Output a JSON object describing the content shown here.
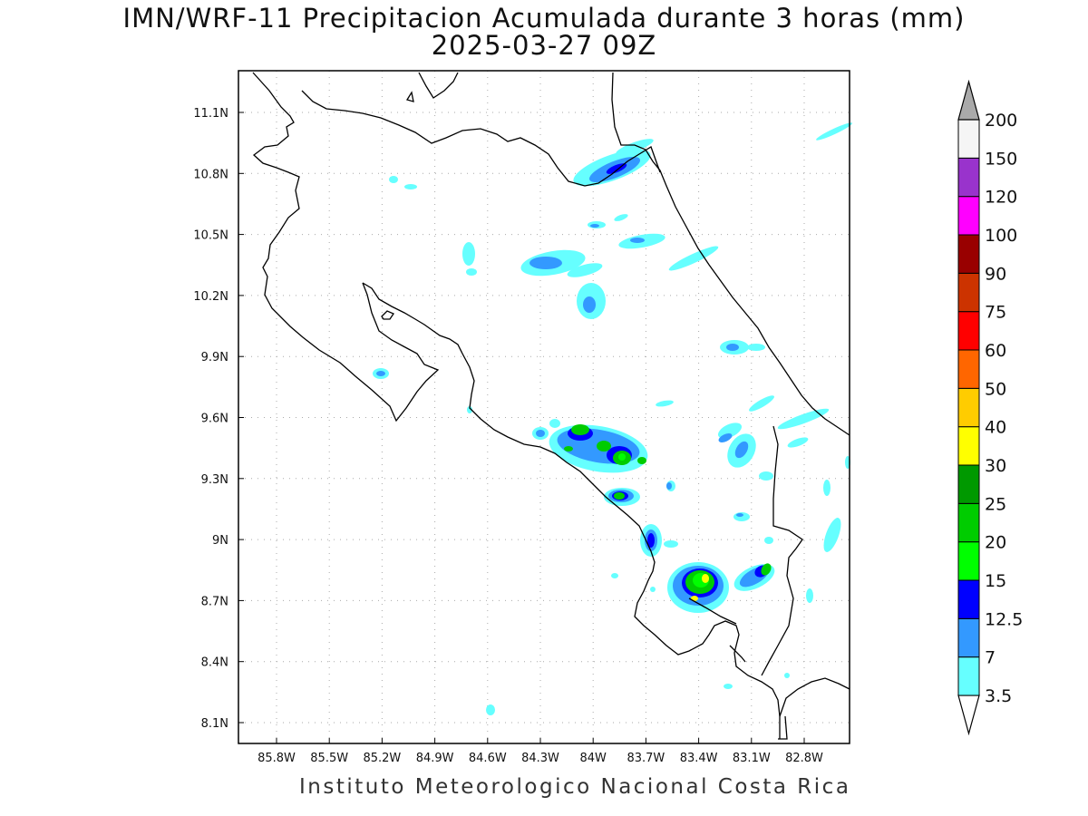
{
  "title_line1": "IMN/WRF-11 Precipitacion Acumulada durante 3 horas (mm)",
  "title_line2": "2025-03-27 09Z",
  "footer": "Instituto Meteorologico Nacional Costa Rica",
  "map": {
    "lon_labels": [
      "85.8W",
      "85.5W",
      "85.2W",
      "84.9W",
      "84.6W",
      "84.3W",
      "84W",
      "83.7W",
      "83.4W",
      "83.1W",
      "82.8W"
    ],
    "lat_labels": [
      "11.1N",
      "10.8N",
      "10.5N",
      "10.2N",
      "9.9N",
      "9.6N",
      "9.3N",
      "9N",
      "8.7N",
      "8.4N",
      "8.1N"
    ]
  },
  "colorbar": {
    "labels": [
      "3.5",
      "7",
      "12.5",
      "15",
      "20",
      "25",
      "30",
      "40",
      "50",
      "60",
      "75",
      "90",
      "100",
      "120",
      "150",
      "200"
    ],
    "colors": [
      "#66ffff",
      "#3399ff",
      "#0000ff",
      "#00ff00",
      "#00cc00",
      "#009900",
      "#ffff00",
      "#ffcc00",
      "#ff6600",
      "#ff0000",
      "#cc3300",
      "#990000",
      "#ff00ff",
      "#9933cc",
      "#f5f5f5",
      "#aaaaaa"
    ]
  }
}
